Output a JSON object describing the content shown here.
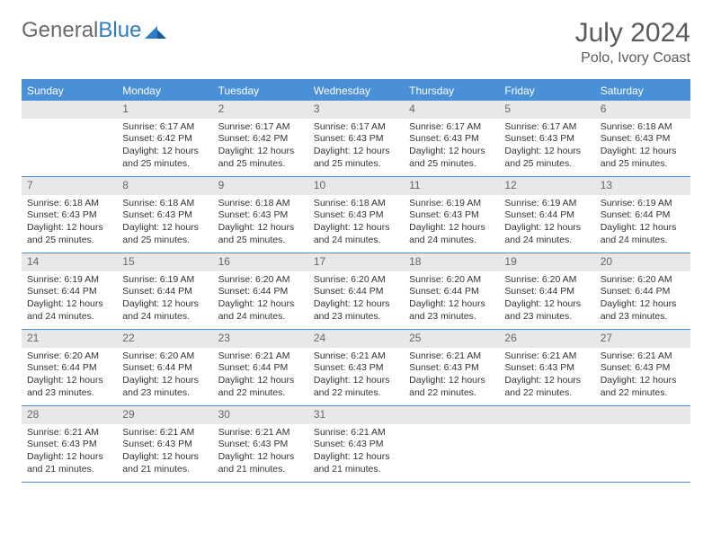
{
  "brand": {
    "part1": "General",
    "part2": "Blue"
  },
  "title": {
    "month": "July 2024",
    "location": "Polo, Ivory Coast"
  },
  "colors": {
    "header_blue": "#4a90d9",
    "cell_num_bg": "#e8e8e8",
    "text_gray": "#5a5a5a"
  },
  "weekdays": [
    "Sunday",
    "Monday",
    "Tuesday",
    "Wednesday",
    "Thursday",
    "Friday",
    "Saturday"
  ],
  "weeks": [
    [
      {
        "n": "",
        "sr": "",
        "ss": "",
        "dl1": "",
        "dl2": "",
        "empty": true
      },
      {
        "n": "1",
        "sr": "Sunrise: 6:17 AM",
        "ss": "Sunset: 6:42 PM",
        "dl1": "Daylight: 12 hours",
        "dl2": "and 25 minutes."
      },
      {
        "n": "2",
        "sr": "Sunrise: 6:17 AM",
        "ss": "Sunset: 6:42 PM",
        "dl1": "Daylight: 12 hours",
        "dl2": "and 25 minutes."
      },
      {
        "n": "3",
        "sr": "Sunrise: 6:17 AM",
        "ss": "Sunset: 6:43 PM",
        "dl1": "Daylight: 12 hours",
        "dl2": "and 25 minutes."
      },
      {
        "n": "4",
        "sr": "Sunrise: 6:17 AM",
        "ss": "Sunset: 6:43 PM",
        "dl1": "Daylight: 12 hours",
        "dl2": "and 25 minutes."
      },
      {
        "n": "5",
        "sr": "Sunrise: 6:17 AM",
        "ss": "Sunset: 6:43 PM",
        "dl1": "Daylight: 12 hours",
        "dl2": "and 25 minutes."
      },
      {
        "n": "6",
        "sr": "Sunrise: 6:18 AM",
        "ss": "Sunset: 6:43 PM",
        "dl1": "Daylight: 12 hours",
        "dl2": "and 25 minutes."
      }
    ],
    [
      {
        "n": "7",
        "sr": "Sunrise: 6:18 AM",
        "ss": "Sunset: 6:43 PM",
        "dl1": "Daylight: 12 hours",
        "dl2": "and 25 minutes."
      },
      {
        "n": "8",
        "sr": "Sunrise: 6:18 AM",
        "ss": "Sunset: 6:43 PM",
        "dl1": "Daylight: 12 hours",
        "dl2": "and 25 minutes."
      },
      {
        "n": "9",
        "sr": "Sunrise: 6:18 AM",
        "ss": "Sunset: 6:43 PM",
        "dl1": "Daylight: 12 hours",
        "dl2": "and 25 minutes."
      },
      {
        "n": "10",
        "sr": "Sunrise: 6:18 AM",
        "ss": "Sunset: 6:43 PM",
        "dl1": "Daylight: 12 hours",
        "dl2": "and 24 minutes."
      },
      {
        "n": "11",
        "sr": "Sunrise: 6:19 AM",
        "ss": "Sunset: 6:43 PM",
        "dl1": "Daylight: 12 hours",
        "dl2": "and 24 minutes."
      },
      {
        "n": "12",
        "sr": "Sunrise: 6:19 AM",
        "ss": "Sunset: 6:44 PM",
        "dl1": "Daylight: 12 hours",
        "dl2": "and 24 minutes."
      },
      {
        "n": "13",
        "sr": "Sunrise: 6:19 AM",
        "ss": "Sunset: 6:44 PM",
        "dl1": "Daylight: 12 hours",
        "dl2": "and 24 minutes."
      }
    ],
    [
      {
        "n": "14",
        "sr": "Sunrise: 6:19 AM",
        "ss": "Sunset: 6:44 PM",
        "dl1": "Daylight: 12 hours",
        "dl2": "and 24 minutes."
      },
      {
        "n": "15",
        "sr": "Sunrise: 6:19 AM",
        "ss": "Sunset: 6:44 PM",
        "dl1": "Daylight: 12 hours",
        "dl2": "and 24 minutes."
      },
      {
        "n": "16",
        "sr": "Sunrise: 6:20 AM",
        "ss": "Sunset: 6:44 PM",
        "dl1": "Daylight: 12 hours",
        "dl2": "and 24 minutes."
      },
      {
        "n": "17",
        "sr": "Sunrise: 6:20 AM",
        "ss": "Sunset: 6:44 PM",
        "dl1": "Daylight: 12 hours",
        "dl2": "and 23 minutes."
      },
      {
        "n": "18",
        "sr": "Sunrise: 6:20 AM",
        "ss": "Sunset: 6:44 PM",
        "dl1": "Daylight: 12 hours",
        "dl2": "and 23 minutes."
      },
      {
        "n": "19",
        "sr": "Sunrise: 6:20 AM",
        "ss": "Sunset: 6:44 PM",
        "dl1": "Daylight: 12 hours",
        "dl2": "and 23 minutes."
      },
      {
        "n": "20",
        "sr": "Sunrise: 6:20 AM",
        "ss": "Sunset: 6:44 PM",
        "dl1": "Daylight: 12 hours",
        "dl2": "and 23 minutes."
      }
    ],
    [
      {
        "n": "21",
        "sr": "Sunrise: 6:20 AM",
        "ss": "Sunset: 6:44 PM",
        "dl1": "Daylight: 12 hours",
        "dl2": "and 23 minutes."
      },
      {
        "n": "22",
        "sr": "Sunrise: 6:20 AM",
        "ss": "Sunset: 6:44 PM",
        "dl1": "Daylight: 12 hours",
        "dl2": "and 23 minutes."
      },
      {
        "n": "23",
        "sr": "Sunrise: 6:21 AM",
        "ss": "Sunset: 6:44 PM",
        "dl1": "Daylight: 12 hours",
        "dl2": "and 22 minutes."
      },
      {
        "n": "24",
        "sr": "Sunrise: 6:21 AM",
        "ss": "Sunset: 6:43 PM",
        "dl1": "Daylight: 12 hours",
        "dl2": "and 22 minutes."
      },
      {
        "n": "25",
        "sr": "Sunrise: 6:21 AM",
        "ss": "Sunset: 6:43 PM",
        "dl1": "Daylight: 12 hours",
        "dl2": "and 22 minutes."
      },
      {
        "n": "26",
        "sr": "Sunrise: 6:21 AM",
        "ss": "Sunset: 6:43 PM",
        "dl1": "Daylight: 12 hours",
        "dl2": "and 22 minutes."
      },
      {
        "n": "27",
        "sr": "Sunrise: 6:21 AM",
        "ss": "Sunset: 6:43 PM",
        "dl1": "Daylight: 12 hours",
        "dl2": "and 22 minutes."
      }
    ],
    [
      {
        "n": "28",
        "sr": "Sunrise: 6:21 AM",
        "ss": "Sunset: 6:43 PM",
        "dl1": "Daylight: 12 hours",
        "dl2": "and 21 minutes."
      },
      {
        "n": "29",
        "sr": "Sunrise: 6:21 AM",
        "ss": "Sunset: 6:43 PM",
        "dl1": "Daylight: 12 hours",
        "dl2": "and 21 minutes."
      },
      {
        "n": "30",
        "sr": "Sunrise: 6:21 AM",
        "ss": "Sunset: 6:43 PM",
        "dl1": "Daylight: 12 hours",
        "dl2": "and 21 minutes."
      },
      {
        "n": "31",
        "sr": "Sunrise: 6:21 AM",
        "ss": "Sunset: 6:43 PM",
        "dl1": "Daylight: 12 hours",
        "dl2": "and 21 minutes."
      },
      {
        "n": "",
        "sr": "",
        "ss": "",
        "dl1": "",
        "dl2": "",
        "empty": true
      },
      {
        "n": "",
        "sr": "",
        "ss": "",
        "dl1": "",
        "dl2": "",
        "empty": true
      },
      {
        "n": "",
        "sr": "",
        "ss": "",
        "dl1": "",
        "dl2": "",
        "empty": true
      }
    ]
  ]
}
